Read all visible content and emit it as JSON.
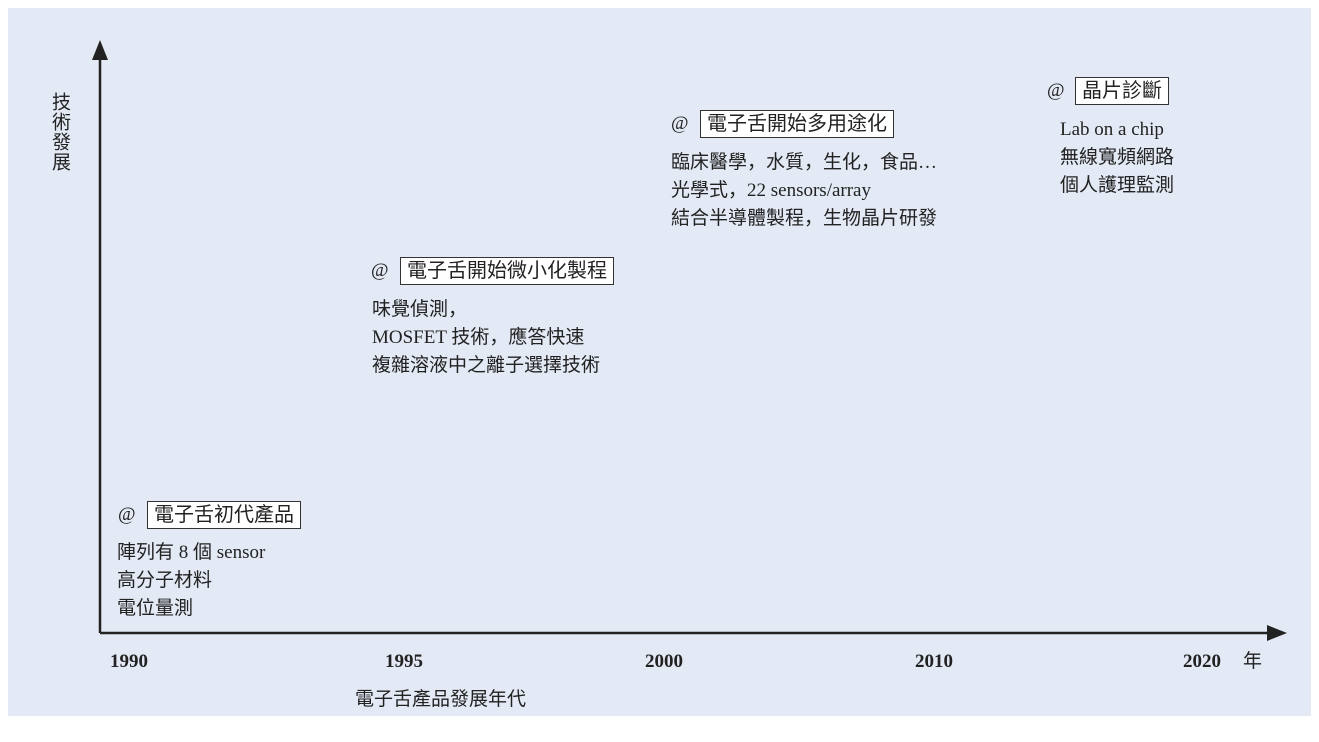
{
  "y_axis_label": "技術發展",
  "x_axis_label": "電子舌產品發展年代",
  "years": [
    "1990",
    "1995",
    "2000",
    "2010",
    "2020"
  ],
  "year_unit": "年",
  "stages": [
    {
      "marker": "@",
      "title": "電子舌初代產品",
      "items": [
        "陣列有 8 個 sensor",
        "高分子材料",
        "電位量測"
      ]
    },
    {
      "marker": "@",
      "title": "電子舌開始微小化製程",
      "items": [
        "味覺偵測，",
        "MOSFET 技術，應答快速",
        "複雜溶液中之離子選擇技術"
      ]
    },
    {
      "marker": "@",
      "title": "電子舌開始多用途化",
      "items": [
        "臨床醫學，水質，生化，食品…",
        "光學式，22 sensors/array",
        "結合半導體製程，生物晶片研發"
      ]
    },
    {
      "marker": "@",
      "title": "晶片診斷",
      "items": [
        "Lab on a chip",
        "無線寬頻網路",
        "個人護理監測"
      ]
    }
  ]
}
